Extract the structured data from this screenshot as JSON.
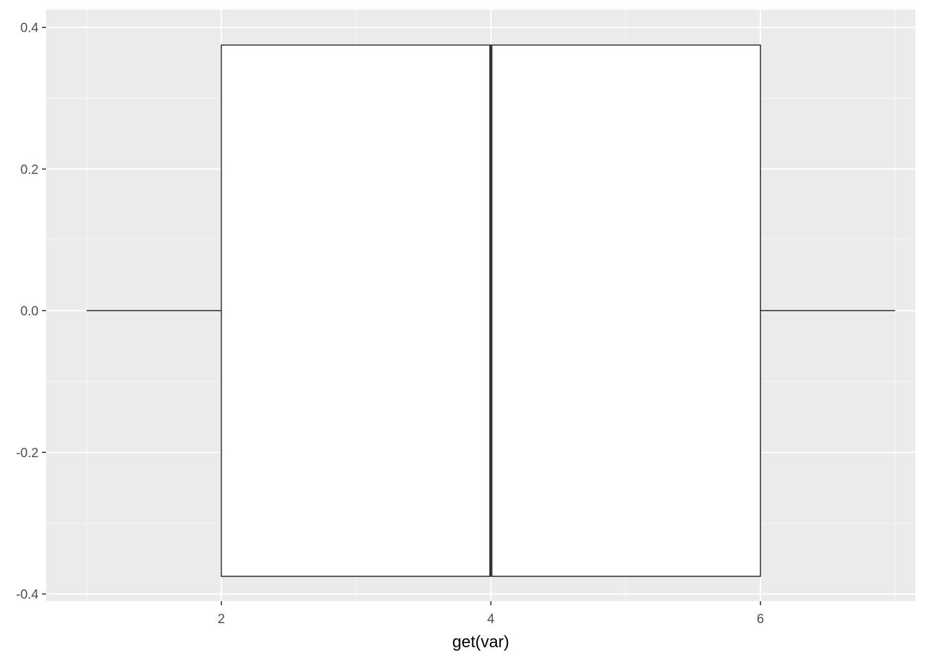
{
  "chart_data": {
    "type": "boxplot",
    "title": "",
    "xlabel": "get(var)",
    "ylabel": "",
    "orientation": "horizontal",
    "xlim": [
      0.7,
      7.15
    ],
    "ylim": [
      -0.41,
      0.425
    ],
    "x_ticks": [
      2,
      4,
      6
    ],
    "x_tick_labels": [
      "2",
      "4",
      "6"
    ],
    "y_ticks": [
      -0.4,
      -0.2,
      0.0,
      0.2,
      0.4
    ],
    "y_tick_labels": [
      "-0.4",
      "-0.2",
      "0.0",
      "0.2",
      "0.4"
    ],
    "grid": true,
    "legend": "none",
    "box": {
      "min": 1,
      "q1": 2,
      "median": 4,
      "q3": 6,
      "max": 7,
      "y_center": 0.0,
      "y_low": -0.375,
      "y_high": 0.375
    },
    "colors": {
      "panel_background": "#ebebeb",
      "grid_major": "#ffffff",
      "grid_minor": "#f5f5f5",
      "box_fill": "#ffffff",
      "box_outline": "#333333",
      "tick_color": "#333333"
    }
  }
}
